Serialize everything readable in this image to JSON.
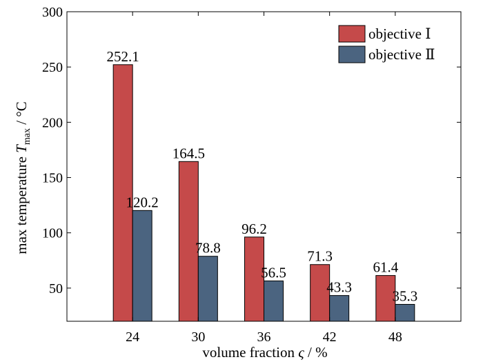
{
  "chart_data": {
    "type": "bar",
    "title": "",
    "xlabel": "volume fraction ς / %",
    "ylabel": "max temperature T_max / °C",
    "ylabel_parts": {
      "prefix": "max temperature ",
      "symbol": "T",
      "subscript": "max",
      "unit": " / °C"
    },
    "xlabel_parts": {
      "prefix": "volume fraction ",
      "symbol": "ς",
      "unit": " / %"
    },
    "categories": [
      "24",
      "30",
      "36",
      "42",
      "48"
    ],
    "series": [
      {
        "name": "objective Ⅰ",
        "values": [
          252.1,
          164.5,
          96.2,
          71.3,
          61.4
        ],
        "color": "#c54a4a"
      },
      {
        "name": "objective Ⅱ",
        "values": [
          120.2,
          78.8,
          56.5,
          43.3,
          35.3
        ],
        "color": "#4b6480"
      }
    ],
    "data_labels": [
      [
        "252.1",
        "164.5",
        "96.2",
        "71.3",
        "61.4"
      ],
      [
        "120.2",
        "78.8",
        "56.5",
        "43.3",
        "35.3"
      ]
    ],
    "ylim": [
      20,
      300
    ],
    "yticks": [
      "50",
      "100",
      "150",
      "200",
      "250",
      "300"
    ],
    "grid": false,
    "legend_position": "top-right"
  }
}
